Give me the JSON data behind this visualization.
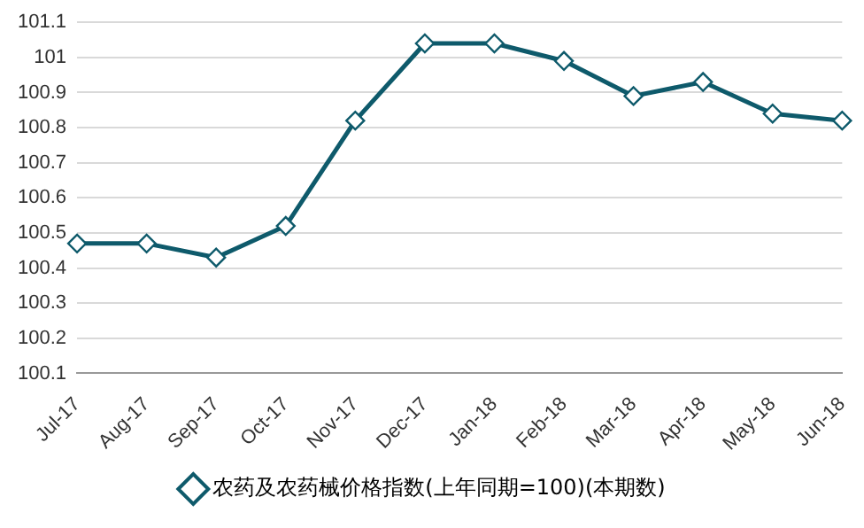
{
  "chart_data": {
    "type": "line",
    "categories": [
      "Jul-17",
      "Aug-17",
      "Sep-17",
      "Oct-17",
      "Nov-17",
      "Dec-17",
      "Jan-18",
      "Feb-18",
      "Mar-18",
      "Apr-18",
      "May-18",
      "Jun-18"
    ],
    "series": [
      {
        "name": "农药及农药械价格指数(上年同期=100)(本期数)",
        "color": "#0e5a6b",
        "values": [
          100.47,
          100.47,
          100.43,
          100.52,
          100.82,
          101.04,
          101.04,
          100.99,
          100.89,
          100.93,
          100.84,
          100.82
        ]
      }
    ],
    "ylim": [
      100.1,
      101.1
    ],
    "yticks": [
      100.1,
      100.2,
      100.3,
      100.4,
      100.5,
      100.6,
      100.7,
      100.8,
      100.9,
      101,
      101.1
    ],
    "grid": "y",
    "legend": "bottom",
    "marker": "diamond",
    "line_style": "solid"
  }
}
